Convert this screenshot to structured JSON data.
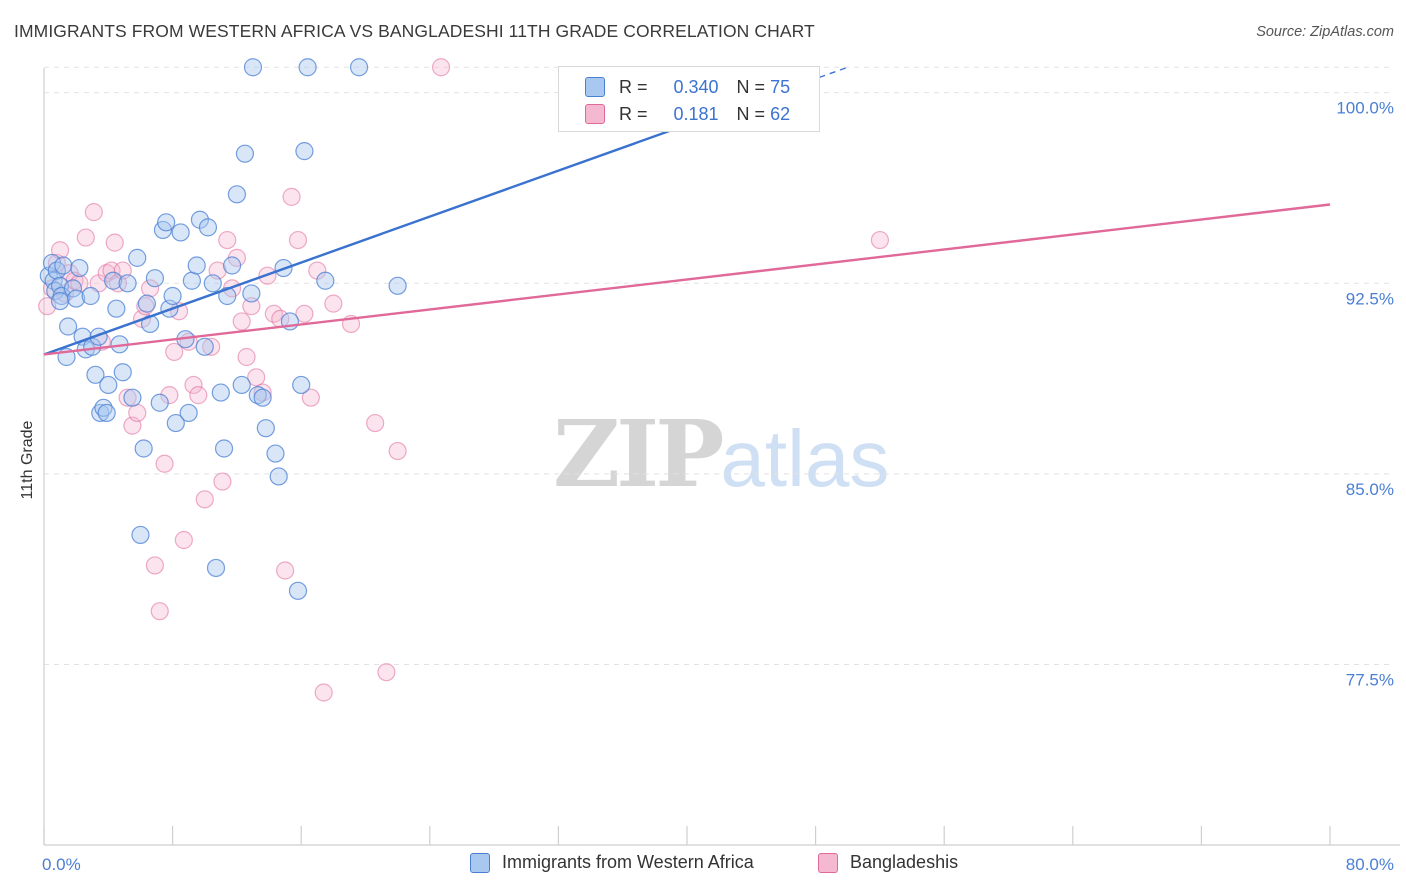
{
  "title": "IMMIGRANTS FROM WESTERN AFRICA VS BANGLADESHI 11TH GRADE CORRELATION CHART",
  "source": "Source: ZipAtlas.com",
  "watermark": {
    "zip": "ZIP",
    "atlas": "atlas"
  },
  "colors": {
    "blue": "#4a7fd4",
    "blue_fill": "#a9c8f0",
    "pink": "#e0699a",
    "pink_fill": "#f5b9cf",
    "grid": "#e3e3e3"
  },
  "legend_top": {
    "rows": [
      {
        "r_label": "R =",
        "r_value": "0.340",
        "n_label": "N =",
        "n_value": "75"
      },
      {
        "r_label": "R =",
        "r_value": "0.181",
        "n_label": "N =",
        "n_value": "62"
      }
    ]
  },
  "chart_data": {
    "type": "scatter",
    "title": "IMMIGRANTS FROM WESTERN AFRICA VS BANGLADESHI 11TH GRADE CORRELATION CHART",
    "xlabel": "",
    "ylabel": "11th Grade",
    "xlim": [
      0,
      80
    ],
    "ylim": [
      70.4,
      101.6
    ],
    "x_tick_labels": [
      "0.0%",
      "80.0%"
    ],
    "y_ticks": [
      77.5,
      85.0,
      92.5,
      100.0
    ],
    "y_tick_labels": [
      "77.5%",
      "85.0%",
      "92.5%",
      "100.0%"
    ],
    "grid": true,
    "legend_position": "bottom",
    "series": [
      {
        "name": "Immigrants from Western Africa",
        "color": "#4a7fd4",
        "r": 0.34,
        "n": 75,
        "trend": {
          "x": [
            0,
            50
          ],
          "y": [
            89.7,
            101.0
          ],
          "solid_until_x": 40.5
        },
        "points": [
          [
            0.3,
            92.8
          ],
          [
            0.5,
            93.3
          ],
          [
            0.6,
            92.6
          ],
          [
            0.7,
            92.2
          ],
          [
            0.8,
            93.0
          ],
          [
            1.0,
            92.4
          ],
          [
            1.1,
            92.0
          ],
          [
            1.2,
            93.2
          ],
          [
            1.0,
            91.8
          ],
          [
            1.5,
            90.8
          ],
          [
            1.4,
            89.6
          ],
          [
            1.8,
            92.3
          ],
          [
            2.0,
            91.9
          ],
          [
            2.2,
            93.1
          ],
          [
            2.4,
            90.4
          ],
          [
            2.6,
            89.9
          ],
          [
            2.9,
            92.0
          ],
          [
            3.0,
            90.0
          ],
          [
            3.2,
            88.9
          ],
          [
            3.4,
            90.4
          ],
          [
            3.5,
            87.4
          ],
          [
            3.7,
            87.6
          ],
          [
            3.9,
            87.4
          ],
          [
            4.0,
            88.5
          ],
          [
            4.3,
            92.6
          ],
          [
            4.5,
            91.5
          ],
          [
            4.7,
            90.1
          ],
          [
            4.9,
            89.0
          ],
          [
            5.2,
            92.5
          ],
          [
            5.5,
            88.0
          ],
          [
            5.8,
            93.5
          ],
          [
            6.0,
            82.6
          ],
          [
            6.2,
            86.0
          ],
          [
            6.4,
            91.7
          ],
          [
            6.6,
            90.9
          ],
          [
            6.9,
            92.7
          ],
          [
            7.2,
            87.8
          ],
          [
            7.4,
            94.6
          ],
          [
            7.6,
            94.9
          ],
          [
            7.8,
            91.5
          ],
          [
            8.0,
            92.0
          ],
          [
            8.2,
            87.0
          ],
          [
            8.5,
            94.5
          ],
          [
            8.8,
            90.3
          ],
          [
            9.0,
            87.4
          ],
          [
            9.2,
            92.6
          ],
          [
            9.5,
            93.2
          ],
          [
            9.7,
            95.0
          ],
          [
            10.0,
            90.0
          ],
          [
            10.2,
            94.7
          ],
          [
            10.5,
            92.5
          ],
          [
            10.7,
            81.3
          ],
          [
            11.0,
            88.2
          ],
          [
            11.2,
            86.0
          ],
          [
            11.4,
            92.0
          ],
          [
            11.7,
            93.2
          ],
          [
            12.0,
            96.0
          ],
          [
            12.3,
            88.5
          ],
          [
            12.5,
            97.6
          ],
          [
            12.9,
            92.1
          ],
          [
            13.0,
            101.0
          ],
          [
            13.3,
            88.1
          ],
          [
            13.6,
            88.0
          ],
          [
            13.8,
            86.8
          ],
          [
            14.4,
            85.8
          ],
          [
            14.6,
            84.9
          ],
          [
            14.9,
            93.1
          ],
          [
            15.3,
            91.0
          ],
          [
            15.8,
            80.4
          ],
          [
            16.0,
            88.5
          ],
          [
            16.2,
            97.7
          ],
          [
            16.4,
            101.0
          ],
          [
            17.5,
            92.6
          ],
          [
            19.6,
            101.0
          ],
          [
            22.0,
            92.4
          ]
        ]
      },
      {
        "name": "Bangladeshis",
        "color": "#e0699a",
        "r": 0.181,
        "n": 62,
        "trend": {
          "x": [
            0,
            80
          ],
          "y": [
            89.7,
            95.6
          ]
        },
        "points": [
          [
            0.2,
            91.6
          ],
          [
            0.5,
            92.3
          ],
          [
            0.8,
            93.3
          ],
          [
            1.0,
            93.8
          ],
          [
            1.3,
            92.1
          ],
          [
            1.6,
            92.9
          ],
          [
            1.9,
            92.6
          ],
          [
            2.2,
            92.5
          ],
          [
            2.6,
            94.3
          ],
          [
            3.1,
            95.3
          ],
          [
            3.4,
            92.5
          ],
          [
            3.6,
            90.2
          ],
          [
            3.9,
            92.9
          ],
          [
            4.2,
            93.0
          ],
          [
            4.4,
            94.1
          ],
          [
            4.6,
            92.5
          ],
          [
            4.9,
            93.0
          ],
          [
            5.2,
            88.0
          ],
          [
            5.5,
            86.9
          ],
          [
            5.8,
            87.4
          ],
          [
            6.1,
            91.1
          ],
          [
            6.3,
            91.6
          ],
          [
            6.6,
            92.3
          ],
          [
            6.9,
            81.4
          ],
          [
            7.2,
            79.6
          ],
          [
            7.5,
            85.4
          ],
          [
            7.8,
            88.1
          ],
          [
            8.1,
            89.8
          ],
          [
            8.4,
            91.4
          ],
          [
            8.7,
            82.4
          ],
          [
            9.0,
            90.2
          ],
          [
            9.3,
            88.5
          ],
          [
            9.6,
            88.1
          ],
          [
            10.0,
            84.0
          ],
          [
            10.4,
            90.0
          ],
          [
            10.8,
            93.0
          ],
          [
            11.1,
            84.7
          ],
          [
            11.4,
            94.2
          ],
          [
            11.7,
            92.3
          ],
          [
            12.0,
            93.5
          ],
          [
            12.3,
            91.0
          ],
          [
            12.6,
            89.6
          ],
          [
            12.9,
            91.6
          ],
          [
            13.2,
            88.8
          ],
          [
            13.6,
            88.2
          ],
          [
            13.9,
            92.8
          ],
          [
            14.3,
            91.3
          ],
          [
            14.7,
            91.1
          ],
          [
            15.0,
            81.2
          ],
          [
            15.4,
            95.9
          ],
          [
            15.8,
            94.2
          ],
          [
            16.2,
            91.3
          ],
          [
            16.6,
            88.0
          ],
          [
            17.0,
            93.0
          ],
          [
            17.4,
            76.4
          ],
          [
            18.0,
            91.7
          ],
          [
            19.1,
            90.9
          ],
          [
            20.6,
            87.0
          ],
          [
            21.3,
            77.2
          ],
          [
            22.0,
            85.9
          ],
          [
            24.7,
            101.0
          ],
          [
            52.0,
            94.2
          ]
        ]
      }
    ]
  },
  "legend_bottom": [
    {
      "label": "Immigrants from Western Africa"
    },
    {
      "label": "Bangladeshis"
    }
  ]
}
